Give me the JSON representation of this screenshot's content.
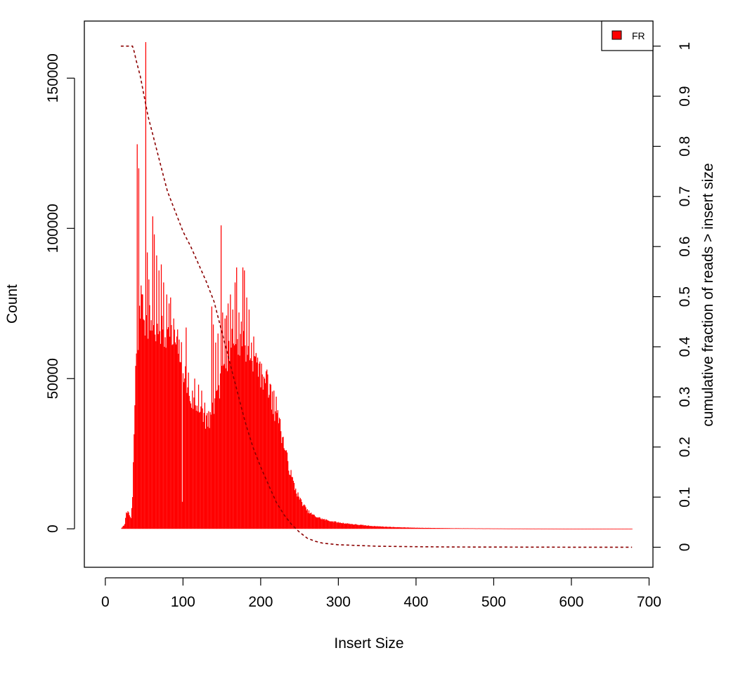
{
  "chart_data": {
    "type": "bar",
    "xlabel": "Insert Size",
    "ylabel": "Count",
    "y2label": "cumulative fraction of reads > insert size",
    "xlim": [
      -27,
      705
    ],
    "ylim": [
      -12800,
      169000
    ],
    "y2lim": [
      -0.04,
      1.05
    ],
    "xticks": [
      "0",
      "100",
      "200",
      "300",
      "400",
      "500",
      "600",
      "700"
    ],
    "yticks": [
      "0",
      "50000",
      "100000",
      "150000"
    ],
    "y2ticks": [
      "0",
      "0.1",
      "0.2",
      "0.3",
      "0.4",
      "0.5",
      "0.6",
      "0.7",
      "0.8",
      "0.9",
      "1"
    ],
    "legend": {
      "position": "top-right",
      "entries": [
        {
          "label": "FR",
          "color": "#ff0000"
        }
      ]
    },
    "grid": false,
    "series": [
      {
        "kind": "histogram",
        "color": "#ff0000",
        "x_start": 20,
        "x_end": 678,
        "profile": [
          [
            20,
            0
          ],
          [
            25,
            1500
          ],
          [
            27,
            6000
          ],
          [
            30,
            5000
          ],
          [
            33,
            3500
          ],
          [
            35,
            10000
          ],
          [
            37,
            32000
          ],
          [
            40,
            60000
          ],
          [
            45,
            72000
          ],
          [
            50,
            70000
          ],
          [
            55,
            69000
          ],
          [
            60,
            68000
          ],
          [
            65,
            67000
          ],
          [
            70,
            66000
          ],
          [
            75,
            65000
          ],
          [
            80,
            64000
          ],
          [
            85,
            63000
          ],
          [
            90,
            62000
          ],
          [
            95,
            60000
          ],
          [
            100,
            55000
          ],
          [
            105,
            48000
          ],
          [
            110,
            43000
          ],
          [
            115,
            42000
          ],
          [
            120,
            40000
          ],
          [
            125,
            38000
          ],
          [
            130,
            36000
          ],
          [
            135,
            37000
          ],
          [
            140,
            40000
          ],
          [
            145,
            43000
          ],
          [
            150,
            50000
          ],
          [
            155,
            57000
          ],
          [
            160,
            60000
          ],
          [
            165,
            61000
          ],
          [
            170,
            61000
          ],
          [
            175,
            62000
          ],
          [
            180,
            60000
          ],
          [
            185,
            59000
          ],
          [
            190,
            58000
          ],
          [
            195,
            55000
          ],
          [
            200,
            52000
          ],
          [
            205,
            50000
          ],
          [
            210,
            46000
          ],
          [
            215,
            42000
          ],
          [
            220,
            38000
          ],
          [
            225,
            34000
          ],
          [
            230,
            28000
          ],
          [
            235,
            22000
          ],
          [
            240,
            17000
          ],
          [
            245,
            13000
          ],
          [
            250,
            10000
          ],
          [
            255,
            8000
          ],
          [
            260,
            6000
          ],
          [
            265,
            5000
          ],
          [
            270,
            4200
          ],
          [
            280,
            3200
          ],
          [
            290,
            2600
          ],
          [
            300,
            2100
          ],
          [
            320,
            1500
          ],
          [
            340,
            1000
          ],
          [
            360,
            700
          ],
          [
            380,
            500
          ],
          [
            400,
            350
          ],
          [
            450,
            200
          ],
          [
            500,
            120
          ],
          [
            550,
            80
          ],
          [
            600,
            50
          ],
          [
            650,
            30
          ],
          [
            678,
            20
          ]
        ],
        "spikes": [
          [
            41,
            128000
          ],
          [
            43,
            120000
          ],
          [
            46,
            81000
          ],
          [
            48,
            78000
          ],
          [
            52,
            162000
          ],
          [
            54,
            92000
          ],
          [
            56,
            83000
          ],
          [
            58,
            66000
          ],
          [
            61,
            104000
          ],
          [
            63,
            98000
          ],
          [
            66,
            91000
          ],
          [
            69,
            86000
          ],
          [
            72,
            88000
          ],
          [
            75,
            82000
          ],
          [
            79,
            78000
          ],
          [
            82,
            75000
          ],
          [
            84,
            77000
          ],
          [
            88,
            70000
          ],
          [
            92,
            64000
          ],
          [
            95,
            63000
          ],
          [
            99,
            9000
          ],
          [
            104,
            67000
          ],
          [
            107,
            52000
          ],
          [
            112,
            46000
          ],
          [
            115,
            50000
          ],
          [
            120,
            48000
          ],
          [
            124,
            46000
          ],
          [
            128,
            42000
          ],
          [
            132,
            34000
          ],
          [
            136,
            38000
          ],
          [
            137,
            74000
          ],
          [
            139,
            68000
          ],
          [
            142,
            62000
          ],
          [
            145,
            65000
          ],
          [
            149,
            101000
          ],
          [
            151,
            72000
          ],
          [
            154,
            70000
          ],
          [
            156,
            71000
          ],
          [
            158,
            75000
          ],
          [
            161,
            78000
          ],
          [
            164,
            73000
          ],
          [
            167,
            82000
          ],
          [
            169,
            87000
          ],
          [
            172,
            72000
          ],
          [
            175,
            69000
          ],
          [
            177,
            87000
          ],
          [
            179,
            86000
          ],
          [
            182,
            77000
          ],
          [
            185,
            73000
          ],
          [
            188,
            62000
          ],
          [
            191,
            64000
          ],
          [
            196,
            57000
          ],
          [
            198,
            55000
          ],
          [
            201,
            55000
          ],
          [
            205,
            50000
          ],
          [
            208,
            53000
          ],
          [
            213,
            48000
          ],
          [
            217,
            46000
          ],
          [
            220,
            44000
          ],
          [
            224,
            37000
          ]
        ]
      },
      {
        "kind": "cumulative-line",
        "color": "#8b0000",
        "dash": "dashed",
        "points": [
          [
            20,
            1.0
          ],
          [
            35,
            1.0
          ],
          [
            37,
            0.99
          ],
          [
            40,
            0.97
          ],
          [
            45,
            0.94
          ],
          [
            50,
            0.9
          ],
          [
            55,
            0.86
          ],
          [
            60,
            0.83
          ],
          [
            65,
            0.8
          ],
          [
            70,
            0.77
          ],
          [
            75,
            0.74
          ],
          [
            80,
            0.71
          ],
          [
            90,
            0.67
          ],
          [
            100,
            0.63
          ],
          [
            110,
            0.6
          ],
          [
            120,
            0.565
          ],
          [
            130,
            0.53
          ],
          [
            140,
            0.49
          ],
          [
            150,
            0.43
          ],
          [
            160,
            0.37
          ],
          [
            170,
            0.31
          ],
          [
            180,
            0.25
          ],
          [
            190,
            0.2
          ],
          [
            200,
            0.16
          ],
          [
            210,
            0.125
          ],
          [
            220,
            0.09
          ],
          [
            230,
            0.065
          ],
          [
            240,
            0.045
          ],
          [
            250,
            0.03
          ],
          [
            260,
            0.018
          ],
          [
            270,
            0.012
          ],
          [
            280,
            0.008
          ],
          [
            300,
            0.005
          ],
          [
            350,
            0.002
          ],
          [
            400,
            0.001
          ],
          [
            450,
            0.0005
          ],
          [
            500,
            0.0003
          ],
          [
            550,
            0.0002
          ],
          [
            600,
            0.0001
          ],
          [
            678,
            0
          ]
        ]
      }
    ]
  }
}
